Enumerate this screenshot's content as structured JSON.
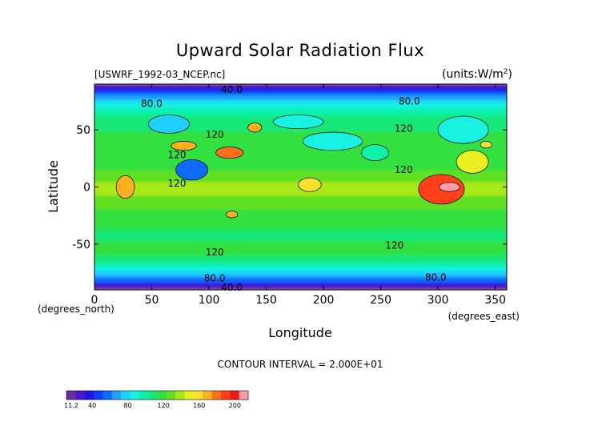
{
  "chart_data": {
    "type": "heatmap",
    "title": "Upward Solar Radiation Flux",
    "file_label": "[USWRF_1992-03_NCEP.nc]",
    "units_label": "(units:W/m^2)",
    "xlabel": "Longitude",
    "ylabel": "Latitude",
    "x_unit_label": "(degrees_east)",
    "y_unit_label": "(degrees_north)",
    "xlim": [
      0,
      360
    ],
    "ylim": [
      -90,
      90
    ],
    "x_ticks": [
      0,
      50,
      100,
      150,
      200,
      250,
      300,
      350
    ],
    "y_ticks": [
      -50,
      0,
      50
    ],
    "contour_interval_text": "CONTOUR INTERVAL = 2.000E+01",
    "contour_labels": [
      {
        "text": "40.0",
        "lon": 120,
        "lat": 85
      },
      {
        "text": "80.0",
        "lon": 50,
        "lat": 73
      },
      {
        "text": "80.0",
        "lon": 275,
        "lat": 75
      },
      {
        "text": "120",
        "lon": 105,
        "lat": 46
      },
      {
        "text": "120",
        "lon": 270,
        "lat": 51
      },
      {
        "text": "120",
        "lon": 270,
        "lat": 15
      },
      {
        "text": "120",
        "lon": 72,
        "lat": 28
      },
      {
        "text": "120",
        "lon": 72,
        "lat": 3
      },
      {
        "text": "120",
        "lon": 105,
        "lat": -57
      },
      {
        "text": "120",
        "lon": 262,
        "lat": -51
      },
      {
        "text": "80.0",
        "lon": 105,
        "lat": -80
      },
      {
        "text": "80.0",
        "lon": 298,
        "lat": -79
      },
      {
        "text": "40.0",
        "lon": 120,
        "lat": -88
      }
    ],
    "colorbar": {
      "min_label": "11.2",
      "tick_labels": [
        "40",
        "80",
        "120",
        "160",
        "200"
      ],
      "tick_values": [
        40,
        80,
        120,
        160,
        200
      ],
      "min": 11.2,
      "max": 215,
      "colors": [
        "#6a2da4",
        "#4b18c8",
        "#1f12e8",
        "#0f3cf5",
        "#0f6aff",
        "#1fa0ff",
        "#1fd0ff",
        "#18f0e0",
        "#10f0a8",
        "#18e878",
        "#30e040",
        "#60e020",
        "#a8e818",
        "#e8f020",
        "#ffe030",
        "#ffb020",
        "#ff7018",
        "#ff4018",
        "#f01818",
        "#ff9aa8"
      ]
    },
    "field_stops": [
      {
        "lat": 90,
        "value": 12
      },
      {
        "lat": 85,
        "value": 38
      },
      {
        "lat": 80,
        "value": 58
      },
      {
        "lat": 75,
        "value": 80
      },
      {
        "lat": 65,
        "value": 100
      },
      {
        "lat": 45,
        "value": 115
      },
      {
        "lat": 25,
        "value": 118
      },
      {
        "lat": 10,
        "value": 125
      },
      {
        "lat": 0,
        "value": 138
      },
      {
        "lat": -10,
        "value": 132
      },
      {
        "lat": -25,
        "value": 120
      },
      {
        "lat": -45,
        "value": 110
      },
      {
        "lat": -55,
        "value": 118
      },
      {
        "lat": -62,
        "value": 112
      },
      {
        "lat": -70,
        "value": 95
      },
      {
        "lat": -76,
        "value": 78
      },
      {
        "lat": -82,
        "value": 58
      },
      {
        "lat": -86,
        "value": 35
      },
      {
        "lat": -90,
        "value": 12
      }
    ],
    "features": [
      {
        "lon": 303,
        "lat": -2,
        "rlon": 20,
        "rlat": 13,
        "value": 190
      },
      {
        "lon": 310,
        "lat": 0,
        "rlon": 9,
        "rlat": 4,
        "value": 212
      },
      {
        "lon": 27,
        "lat": 0,
        "rlon": 8,
        "rlat": 10,
        "value": 172
      },
      {
        "lon": 78,
        "lat": 36,
        "rlon": 11,
        "rlat": 4,
        "value": 168
      },
      {
        "lon": 118,
        "lat": 30,
        "rlon": 12,
        "rlat": 5,
        "value": 178
      },
      {
        "lon": 140,
        "lat": 52,
        "rlon": 6,
        "rlat": 4,
        "value": 170
      },
      {
        "lon": 188,
        "lat": 2,
        "rlon": 10,
        "rlat": 6,
        "value": 162
      },
      {
        "lon": 342,
        "lat": 37,
        "rlon": 5,
        "rlat": 3,
        "value": 162
      },
      {
        "lon": 120,
        "lat": -24,
        "rlon": 5,
        "rlat": 3,
        "value": 165
      },
      {
        "lon": 208,
        "lat": 40,
        "rlon": 26,
        "rlat": 8,
        "value": 90
      },
      {
        "lon": 85,
        "lat": 15,
        "rlon": 14,
        "rlat": 9,
        "value": 62
      },
      {
        "lon": 65,
        "lat": 55,
        "rlon": 18,
        "rlat": 8,
        "value": 80
      },
      {
        "lon": 322,
        "lat": 50,
        "rlon": 22,
        "rlat": 12,
        "value": 88
      },
      {
        "lon": 178,
        "lat": 57,
        "rlon": 22,
        "rlat": 6,
        "value": 86
      },
      {
        "lon": 330,
        "lat": 22,
        "rlon": 14,
        "rlat": 10,
        "value": 150
      },
      {
        "lon": 245,
        "lat": 30,
        "rlon": 12,
        "rlat": 7,
        "value": 95
      }
    ]
  }
}
